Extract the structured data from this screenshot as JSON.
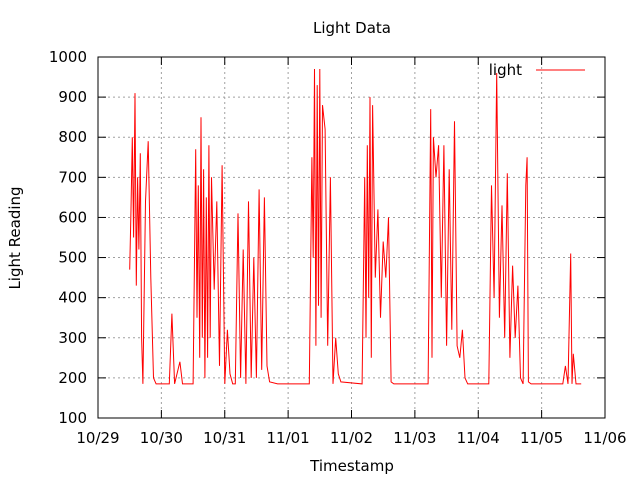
{
  "chart_data": {
    "type": "line",
    "title": "Light Data",
    "xlabel": "Timestamp",
    "ylabel": "Light Reading",
    "ylim": [
      100,
      1000
    ],
    "y_ticks": [
      100,
      200,
      300,
      400,
      500,
      600,
      700,
      800,
      900,
      1000
    ],
    "x_ticks": [
      "10/29",
      "10/30",
      "10/31",
      "11/01",
      "11/02",
      "11/03",
      "11/04",
      "11/05",
      "11/06"
    ],
    "grid": true,
    "legend_position": "top-right",
    "series": [
      {
        "name": "light",
        "color": "#ff0000",
        "points": [
          [
            "10/29 12:00",
            470
          ],
          [
            "10/29 12:30",
            620
          ],
          [
            "10/29 13:00",
            800
          ],
          [
            "10/29 13:30",
            550
          ],
          [
            "10/29 14:00",
            910
          ],
          [
            "10/29 14:30",
            430
          ],
          [
            "10/29 15:00",
            700
          ],
          [
            "10/29 15:30",
            520
          ],
          [
            "10/29 16:00",
            760
          ],
          [
            "10/29 16:30",
            300
          ],
          [
            "10/29 17:00",
            185
          ],
          [
            "10/29 18:00",
            640
          ],
          [
            "10/29 19:00",
            790
          ],
          [
            "10/29 20:00",
            450
          ],
          [
            "10/29 21:00",
            200
          ],
          [
            "10/29 22:00",
            185
          ],
          [
            "10/30 03:00",
            185
          ],
          [
            "10/30 04:00",
            360
          ],
          [
            "10/30 05:00",
            185
          ],
          [
            "10/30 07:00",
            240
          ],
          [
            "10/30 08:00",
            185
          ],
          [
            "10/30 12:00",
            185
          ],
          [
            "10/30 13:00",
            770
          ],
          [
            "10/30 13:30",
            350
          ],
          [
            "10/30 14:00",
            680
          ],
          [
            "10/30 14:30",
            250
          ],
          [
            "10/30 15:00",
            850
          ],
          [
            "10/30 15:30",
            300
          ],
          [
            "10/30 16:00",
            720
          ],
          [
            "10/30 16:30",
            200
          ],
          [
            "10/30 17:00",
            650
          ],
          [
            "10/30 17:30",
            250
          ],
          [
            "10/30 18:00",
            780
          ],
          [
            "10/30 18:30",
            300
          ],
          [
            "10/30 19:00",
            700
          ],
          [
            "10/30 20:00",
            420
          ],
          [
            "10/30 21:00",
            640
          ],
          [
            "10/30 22:00",
            230
          ],
          [
            "10/30 23:00",
            730
          ],
          [
            "10/31 00:00",
            185
          ],
          [
            "10/31 01:00",
            320
          ],
          [
            "10/31 02:00",
            210
          ],
          [
            "10/31 03:00",
            185
          ],
          [
            "10/31 04:00",
            185
          ],
          [
            "10/31 05:00",
            610
          ],
          [
            "10/31 06:00",
            200
          ],
          [
            "10/31 07:00",
            520
          ],
          [
            "10/31 08:00",
            185
          ],
          [
            "10/31 09:00",
            640
          ],
          [
            "10/31 10:00",
            200
          ],
          [
            "10/31 11:00",
            500
          ],
          [
            "10/31 12:00",
            200
          ],
          [
            "10/31 13:00",
            670
          ],
          [
            "10/31 14:00",
            220
          ],
          [
            "10/31 15:00",
            650
          ],
          [
            "10/31 16:00",
            230
          ],
          [
            "10/31 17:00",
            190
          ],
          [
            "10/31 20:00",
            185
          ],
          [
            "11/01 08:00",
            185
          ],
          [
            "11/01 09:00",
            750
          ],
          [
            "11/01 09:30",
            500
          ],
          [
            "11/01 10:00",
            970
          ],
          [
            "11/01 10:30",
            280
          ],
          [
            "11/01 11:00",
            930
          ],
          [
            "11/01 11:30",
            380
          ],
          [
            "11/01 12:00",
            970
          ],
          [
            "11/01 12:30",
            350
          ],
          [
            "11/01 13:00",
            880
          ],
          [
            "11/01 14:00",
            820
          ],
          [
            "11/01 15:00",
            280
          ],
          [
            "11/01 16:00",
            700
          ],
          [
            "11/01 17:00",
            185
          ],
          [
            "11/01 18:00",
            300
          ],
          [
            "11/01 19:00",
            210
          ],
          [
            "11/01 20:00",
            190
          ],
          [
            "11/02 04:00",
            185
          ],
          [
            "11/02 05:00",
            700
          ],
          [
            "11/02 05:30",
            300
          ],
          [
            "11/02 06:00",
            780
          ],
          [
            "11/02 06:30",
            400
          ],
          [
            "11/02 07:00",
            900
          ],
          [
            "11/02 07:30",
            250
          ],
          [
            "11/02 08:00",
            880
          ],
          [
            "11/02 09:00",
            450
          ],
          [
            "11/02 10:00",
            620
          ],
          [
            "11/02 11:00",
            350
          ],
          [
            "11/02 12:00",
            540
          ],
          [
            "11/02 13:00",
            450
          ],
          [
            "11/02 14:00",
            600
          ],
          [
            "11/02 15:00",
            190
          ],
          [
            "11/02 16:00",
            185
          ],
          [
            "11/03 05:00",
            185
          ],
          [
            "11/03 06:00",
            870
          ],
          [
            "11/03 06:30",
            250
          ],
          [
            "11/03 07:00",
            800
          ],
          [
            "11/03 08:00",
            700
          ],
          [
            "11/03 09:00",
            780
          ],
          [
            "11/03 10:00",
            400
          ],
          [
            "11/03 11:00",
            780
          ],
          [
            "11/03 12:00",
            280
          ],
          [
            "11/03 13:00",
            720
          ],
          [
            "11/03 14:00",
            320
          ],
          [
            "11/03 15:00",
            840
          ],
          [
            "11/03 16:00",
            280
          ],
          [
            "11/03 17:00",
            250
          ],
          [
            "11/03 18:00",
            320
          ],
          [
            "11/03 19:00",
            200
          ],
          [
            "11/03 20:00",
            185
          ],
          [
            "11/04 04:00",
            185
          ],
          [
            "11/04 05:00",
            680
          ],
          [
            "11/04 06:00",
            400
          ],
          [
            "11/04 07:00",
            960
          ],
          [
            "11/04 08:00",
            350
          ],
          [
            "11/04 09:00",
            630
          ],
          [
            "11/04 10:00",
            300
          ],
          [
            "11/04 11:00",
            710
          ],
          [
            "11/04 12:00",
            250
          ],
          [
            "11/04 13:00",
            480
          ],
          [
            "11/04 14:00",
            300
          ],
          [
            "11/04 15:00",
            430
          ],
          [
            "11/04 16:00",
            200
          ],
          [
            "11/04 17:00",
            185
          ],
          [
            "11/04 18:00",
            680
          ],
          [
            "11/04 18:30",
            750
          ],
          [
            "11/04 19:00",
            190
          ],
          [
            "11/04 20:00",
            185
          ],
          [
            "11/05 08:00",
            185
          ],
          [
            "11/05 09:00",
            230
          ],
          [
            "11/05 10:00",
            185
          ],
          [
            "11/05 11:00",
            510
          ],
          [
            "11/05 11:30",
            185
          ],
          [
            "11/05 12:00",
            260
          ],
          [
            "11/05 13:00",
            185
          ],
          [
            "11/05 15:00",
            185
          ]
        ]
      }
    ]
  }
}
